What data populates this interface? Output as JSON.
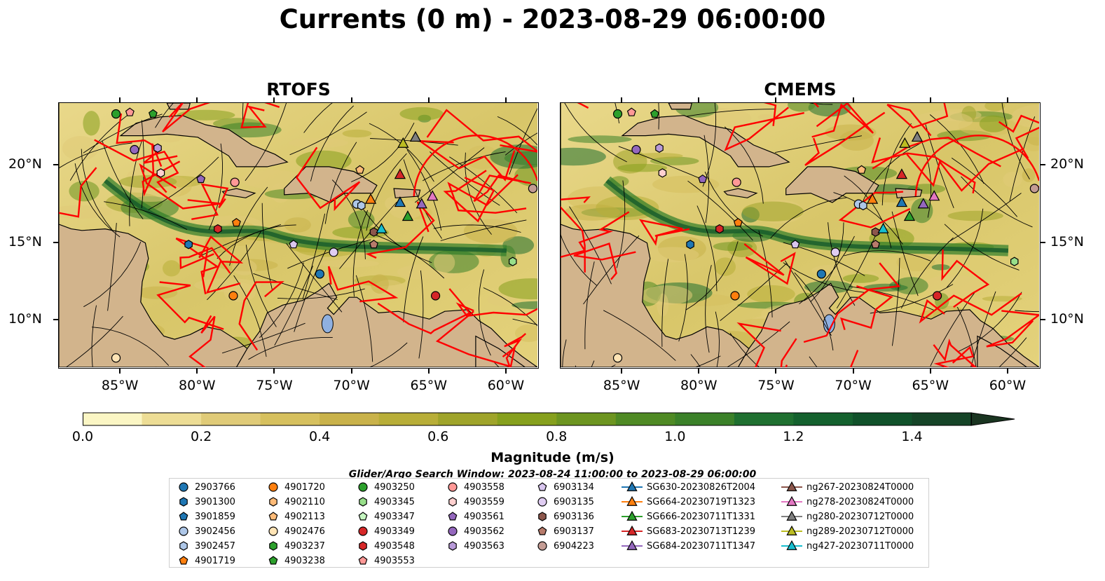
{
  "title": "Currents (0 m) - 2023-08-29 06:00:00",
  "panels": [
    {
      "title": "RTOFS"
    },
    {
      "title": "CMEMS"
    }
  ],
  "map": {
    "lon_range": [
      -89,
      -58
    ],
    "lat_range": [
      7,
      24
    ],
    "lon_ticks": [
      "85°W",
      "80°W",
      "75°W",
      "70°W",
      "65°W",
      "60°W"
    ],
    "lat_ticks": [
      "20°N",
      "15°N",
      "10°N"
    ],
    "land_color": "#d2b48c",
    "boundary_color": "#ff0000"
  },
  "colorbar": {
    "label": "Magnitude (m/s)",
    "ticks": [
      "0.0",
      "0.2",
      "0.4",
      "0.6",
      "0.8",
      "1.0",
      "1.2",
      "1.4"
    ],
    "vmin": 0.0,
    "vmax": 1.5,
    "extend": "max",
    "colors": [
      "#fbf6c4",
      "#eddd95",
      "#e0cb78",
      "#d6c05e",
      "#c9b24a",
      "#b8ae38",
      "#9fa42a",
      "#86a01d",
      "#6d9520",
      "#4f8a24",
      "#3b8129",
      "#1f7030",
      "#14612e",
      "#10512a",
      "#154427",
      "#1a3521"
    ]
  },
  "search_window": "Glider/Argo Search Window: 2023-08-24 11:00:00 to 2023-08-29 06:00:00",
  "legend": {
    "columns": [
      [
        {
          "label": "2903766",
          "marker": "circle",
          "color": "#1f77b4"
        },
        {
          "label": "3901300",
          "marker": "hexagon",
          "color": "#1f77b4"
        },
        {
          "label": "3901859",
          "marker": "pentagon",
          "color": "#1f77b4"
        },
        {
          "label": "3902456",
          "marker": "circle",
          "color": "#aec7e8"
        },
        {
          "label": "3902457",
          "marker": "hexagon",
          "color": "#aec7e8"
        },
        {
          "label": "4901719",
          "marker": "pentagon",
          "color": "#ff7f0e"
        }
      ],
      [
        {
          "label": "4901720",
          "marker": "circle",
          "color": "#ff7f0e"
        },
        {
          "label": "4902110",
          "marker": "hexagon",
          "color": "#ffbb78"
        },
        {
          "label": "4902113",
          "marker": "pentagon",
          "color": "#ffbb78"
        },
        {
          "label": "4902476",
          "marker": "circle",
          "color": "#ffe4b5"
        },
        {
          "label": "4903237",
          "marker": "hexagon",
          "color": "#2ca02c"
        },
        {
          "label": "4903238",
          "marker": "pentagon",
          "color": "#2ca02c"
        }
      ],
      [
        {
          "label": "4903250",
          "marker": "circle",
          "color": "#2ca02c"
        },
        {
          "label": "4903345",
          "marker": "hexagon",
          "color": "#98df8a"
        },
        {
          "label": "4903347",
          "marker": "pentagon",
          "color": "#c5f5c0"
        },
        {
          "label": "4903349",
          "marker": "circle",
          "color": "#d62728"
        },
        {
          "label": "4903548",
          "marker": "hexagon",
          "color": "#d62728"
        },
        {
          "label": "4903553",
          "marker": "pentagon",
          "color": "#ff9896"
        }
      ],
      [
        {
          "label": "4903558",
          "marker": "circle",
          "color": "#ff9896"
        },
        {
          "label": "4903559",
          "marker": "hexagon",
          "color": "#ffd0cf"
        },
        {
          "label": "4903561",
          "marker": "pentagon",
          "color": "#9467bd"
        },
        {
          "label": "4903562",
          "marker": "circle",
          "color": "#9467bd"
        },
        {
          "label": "4903563",
          "marker": "hexagon",
          "color": "#b89ad8"
        }
      ],
      [
        {
          "label": "6903134",
          "marker": "pentagon",
          "color": "#d9c6ef"
        },
        {
          "label": "6903135",
          "marker": "circle",
          "color": "#e0cdf2"
        },
        {
          "label": "6903136",
          "marker": "hexagon",
          "color": "#8c564b"
        },
        {
          "label": "6903137",
          "marker": "pentagon",
          "color": "#b77b6b"
        },
        {
          "label": "6904223",
          "marker": "circle",
          "color": "#c49c94"
        }
      ],
      [
        {
          "label": "SG630-20230826T2004",
          "marker": "triangle",
          "color": "#1f77b4"
        },
        {
          "label": "SG664-20230719T1323",
          "marker": "triangle",
          "color": "#ff7f0e"
        },
        {
          "label": "SG666-20230711T1331",
          "marker": "triangle",
          "color": "#2ca02c"
        },
        {
          "label": "SG683-20230713T1239",
          "marker": "triangle",
          "color": "#d62728"
        },
        {
          "label": "SG684-20230711T1347",
          "marker": "triangle",
          "color": "#9467bd"
        }
      ],
      [
        {
          "label": "ng267-20230824T0000",
          "marker": "triangle",
          "color": "#8c564b"
        },
        {
          "label": "ng278-20230824T0000",
          "marker": "triangle",
          "color": "#e377c2"
        },
        {
          "label": "ng280-20230712T0000",
          "marker": "triangle",
          "color": "#7f7f7f"
        },
        {
          "label": "ng289-20230712T0000",
          "marker": "triangle",
          "color": "#bcbd22"
        },
        {
          "label": "ng427-20230711T0000",
          "marker": "triangle",
          "color": "#17becf"
        }
      ]
    ]
  },
  "platforms": [
    {
      "id": "4903250",
      "lon": -85.3,
      "lat": 23.3,
      "marker": "circle",
      "color": "#2ca02c"
    },
    {
      "id": "4903553",
      "lon": -84.4,
      "lat": 23.4,
      "marker": "pentagon",
      "color": "#ff9896"
    },
    {
      "id": "4903238",
      "lon": -82.9,
      "lat": 23.3,
      "marker": "pentagon",
      "color": "#2ca02c"
    },
    {
      "id": "4903562",
      "lon": -84.1,
      "lat": 21.0,
      "marker": "circle",
      "color": "#9467bd"
    },
    {
      "id": "4903563",
      "lon": -82.6,
      "lat": 21.1,
      "marker": "hexagon",
      "color": "#b89ad8"
    },
    {
      "id": "4903559",
      "lon": -82.4,
      "lat": 19.5,
      "marker": "hexagon",
      "color": "#ffd0cf"
    },
    {
      "id": "4903561",
      "lon": -79.8,
      "lat": 19.1,
      "marker": "pentagon",
      "color": "#9467bd"
    },
    {
      "id": "4903558",
      "lon": -77.6,
      "lat": 18.9,
      "marker": "circle",
      "color": "#ff9896"
    },
    {
      "id": "4902113",
      "lon": -69.5,
      "lat": 19.7,
      "marker": "pentagon",
      "color": "#ffbb78"
    },
    {
      "id": "4901719",
      "lon": -77.5,
      "lat": 16.3,
      "marker": "pentagon",
      "color": "#ff7f0e"
    },
    {
      "id": "4903548",
      "lon": -78.7,
      "lat": 15.9,
      "marker": "hexagon",
      "color": "#d62728"
    },
    {
      "id": "3901300",
      "lon": -80.6,
      "lat": 14.9,
      "marker": "hexagon",
      "color": "#1f77b4"
    },
    {
      "id": "6903134",
      "lon": -73.8,
      "lat": 14.9,
      "marker": "pentagon",
      "color": "#d9c6ef"
    },
    {
      "id": "6903135",
      "lon": -71.2,
      "lat": 14.4,
      "marker": "circle",
      "color": "#e0cdf2"
    },
    {
      "id": "3902456",
      "lon": -69.7,
      "lat": 17.5,
      "marker": "circle",
      "color": "#aec7e8"
    },
    {
      "id": "3902457",
      "lon": -69.4,
      "lat": 17.4,
      "marker": "hexagon",
      "color": "#aec7e8"
    },
    {
      "id": "6903136",
      "lon": -68.6,
      "lat": 15.7,
      "marker": "hexagon",
      "color": "#8c564b"
    },
    {
      "id": "6903137",
      "lon": -68.6,
      "lat": 14.9,
      "marker": "pentagon",
      "color": "#b77b6b"
    },
    {
      "id": "2903766",
      "lon": -72.1,
      "lat": 13.0,
      "marker": "circle",
      "color": "#1f77b4"
    },
    {
      "id": "4901720",
      "lon": -77.7,
      "lat": 11.6,
      "marker": "circle",
      "color": "#ff7f0e"
    },
    {
      "id": "4903349",
      "lon": -64.6,
      "lat": 11.6,
      "marker": "circle",
      "color": "#d62728"
    },
    {
      "id": "4903345",
      "lon": -59.6,
      "lat": 13.8,
      "marker": "hexagon",
      "color": "#98df8a"
    },
    {
      "id": "6904223",
      "lon": -58.3,
      "lat": 18.5,
      "marker": "circle",
      "color": "#c49c94"
    },
    {
      "id": "4902476",
      "lon": -85.3,
      "lat": 7.6,
      "marker": "circle",
      "color": "#ffe4b5"
    },
    {
      "id": "ng289-20230712T0000",
      "lon": -66.7,
      "lat": 21.4,
      "marker": "triangle",
      "color": "#bcbd22"
    },
    {
      "id": "ng280-20230712T0000",
      "lon": -65.9,
      "lat": 21.8,
      "marker": "triangle",
      "color": "#7f7f7f"
    },
    {
      "id": "SG683-20230713T1239",
      "lon": -66.9,
      "lat": 19.4,
      "marker": "triangle",
      "color": "#d62728"
    },
    {
      "id": "SG664-20230719T1323",
      "lon": -68.8,
      "lat": 17.8,
      "marker": "triangle",
      "color": "#ff7f0e"
    },
    {
      "id": "SG630-20230826T2004",
      "lon": -66.9,
      "lat": 17.6,
      "marker": "triangle",
      "color": "#1f77b4"
    },
    {
      "id": "SG684-20230711T1347",
      "lon": -65.5,
      "lat": 17.5,
      "marker": "triangle",
      "color": "#9467bd"
    },
    {
      "id": "ng278-20230824T0000",
      "lon": -64.8,
      "lat": 18.0,
      "marker": "triangle",
      "color": "#e377c2"
    },
    {
      "id": "SG666-20230711T1331",
      "lon": -66.4,
      "lat": 16.7,
      "marker": "triangle",
      "color": "#2ca02c"
    },
    {
      "id": "ng427-20230711T0000",
      "lon": -68.1,
      "lat": 15.9,
      "marker": "triangle",
      "color": "#17becf"
    }
  ]
}
